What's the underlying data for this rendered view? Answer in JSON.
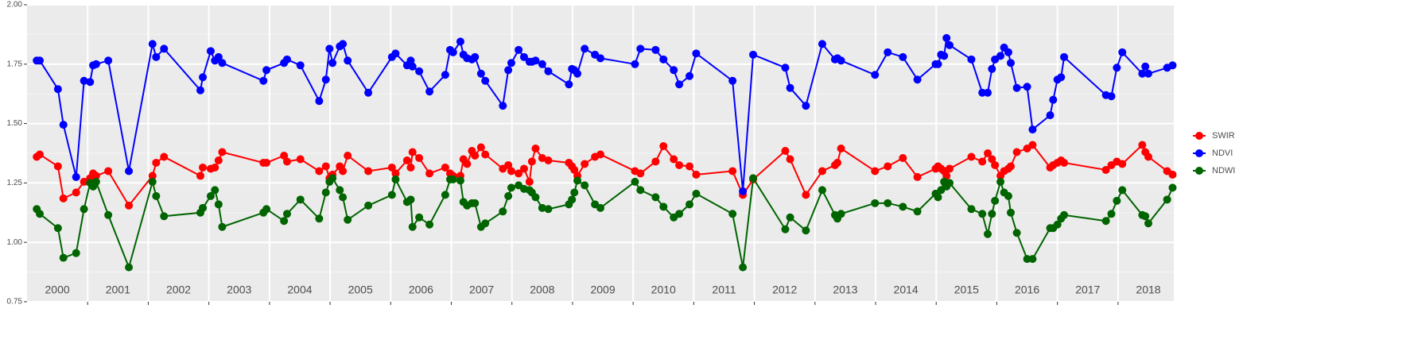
{
  "chart_data": {
    "type": "line",
    "x": [
      2000.16,
      2000.21,
      2000.51,
      2000.6,
      2000.81,
      2000.94,
      2001.04,
      2001.09,
      2001.14,
      2001.34,
      2001.68,
      2002.07,
      2002.13,
      2002.26,
      2002.86,
      2002.9,
      2003.03,
      2003.1,
      2003.16,
      2003.22,
      2003.9,
      2003.95,
      2004.24,
      2004.29,
      2004.51,
      2004.82,
      2004.93,
      2004.99,
      2005.04,
      2005.16,
      2005.21,
      2005.29,
      2005.63,
      2006.02,
      2006.08,
      2006.27,
      2006.33,
      2006.36,
      2006.47,
      2006.64,
      2006.9,
      2006.98,
      2007.03,
      2007.15,
      2007.2,
      2007.26,
      2007.34,
      2007.39,
      2007.49,
      2007.56,
      2007.85,
      2007.94,
      2007.99,
      2008.11,
      2008.2,
      2008.29,
      2008.33,
      2008.39,
      2008.5,
      2008.6,
      2008.94,
      2008.99,
      2009.03,
      2009.08,
      2009.2,
      2009.37,
      2009.46,
      2010.03,
      2010.12,
      2010.37,
      2010.5,
      2010.67,
      2010.76,
      2010.93,
      2011.04,
      2011.64,
      2011.81,
      2011.98,
      2012.51,
      2012.59,
      2012.85,
      2013.12,
      2013.33,
      2013.37,
      2013.43,
      2013.99,
      2014.2,
      2014.45,
      2014.69,
      2014.99,
      2015.03,
      2015.08,
      2015.13,
      2015.17,
      2015.22,
      2015.58,
      2015.76,
      2015.85,
      2015.92,
      2015.97,
      2016.06,
      2016.12,
      2016.19,
      2016.23,
      2016.33,
      2016.5,
      2016.59,
      2016.88,
      2016.93,
      2017.0,
      2017.06,
      2017.11,
      2017.8,
      2017.89,
      2017.98,
      2018.07,
      2018.4,
      2018.45,
      2018.5,
      2018.81,
      2018.9
    ],
    "series": [
      {
        "name": "SWIR",
        "color": "#ff0000",
        "values": [
          1.36,
          1.37,
          1.32,
          1.185,
          1.21,
          1.255,
          1.27,
          1.29,
          1.28,
          1.3,
          1.155,
          1.28,
          1.335,
          1.36,
          1.28,
          1.315,
          1.31,
          1.315,
          1.345,
          1.38,
          1.335,
          1.335,
          1.365,
          1.34,
          1.35,
          1.3,
          1.32,
          1.27,
          1.285,
          1.32,
          1.3,
          1.365,
          1.3,
          1.315,
          1.29,
          1.345,
          1.315,
          1.38,
          1.355,
          1.29,
          1.315,
          1.29,
          1.28,
          1.28,
          1.35,
          1.33,
          1.385,
          1.365,
          1.4,
          1.37,
          1.31,
          1.325,
          1.3,
          1.29,
          1.31,
          1.255,
          1.34,
          1.395,
          1.355,
          1.345,
          1.335,
          1.32,
          1.305,
          1.28,
          1.33,
          1.36,
          1.37,
          1.3,
          1.29,
          1.34,
          1.405,
          1.35,
          1.325,
          1.32,
          1.285,
          1.3,
          1.2,
          1.265,
          1.385,
          1.35,
          1.2,
          1.3,
          1.325,
          1.335,
          1.395,
          1.3,
          1.32,
          1.355,
          1.275,
          1.31,
          1.32,
          1.31,
          1.3,
          1.28,
          1.31,
          1.36,
          1.34,
          1.375,
          1.35,
          1.325,
          1.28,
          1.3,
          1.31,
          1.32,
          1.38,
          1.395,
          1.41,
          1.315,
          1.325,
          1.335,
          1.345,
          1.335,
          1.305,
          1.325,
          1.34,
          1.33,
          1.41,
          1.38,
          1.36,
          1.3,
          1.285
        ]
      },
      {
        "name": "NDVI",
        "color": "#0000ff",
        "values": [
          1.765,
          1.765,
          1.645,
          1.495,
          1.275,
          1.68,
          1.675,
          1.745,
          1.75,
          1.765,
          1.3,
          1.835,
          1.78,
          1.815,
          1.64,
          1.695,
          1.805,
          1.765,
          1.78,
          1.755,
          1.68,
          1.725,
          1.755,
          1.77,
          1.745,
          1.595,
          1.685,
          1.815,
          1.755,
          1.825,
          1.835,
          1.765,
          1.63,
          1.78,
          1.795,
          1.745,
          1.765,
          1.74,
          1.72,
          1.635,
          1.705,
          1.81,
          1.8,
          1.845,
          1.79,
          1.775,
          1.77,
          1.78,
          1.71,
          1.68,
          1.575,
          1.725,
          1.755,
          1.81,
          1.78,
          1.76,
          1.76,
          1.765,
          1.75,
          1.72,
          1.665,
          1.73,
          1.725,
          1.71,
          1.815,
          1.79,
          1.775,
          1.75,
          1.815,
          1.81,
          1.77,
          1.725,
          1.665,
          1.7,
          1.795,
          1.68,
          1.215,
          1.79,
          1.735,
          1.65,
          1.575,
          1.835,
          1.77,
          1.775,
          1.765,
          1.705,
          1.8,
          1.78,
          1.685,
          1.75,
          1.75,
          1.79,
          1.785,
          1.86,
          1.83,
          1.77,
          1.63,
          1.63,
          1.73,
          1.77,
          1.785,
          1.82,
          1.8,
          1.755,
          1.65,
          1.655,
          1.475,
          1.535,
          1.6,
          1.685,
          1.695,
          1.78,
          1.62,
          1.615,
          1.735,
          1.8,
          1.71,
          1.74,
          1.71,
          1.735,
          1.745
        ]
      },
      {
        "name": "NDWI",
        "color": "#006400",
        "values": [
          1.14,
          1.12,
          1.06,
          0.935,
          0.955,
          1.14,
          1.25,
          1.235,
          1.255,
          1.115,
          0.895,
          1.255,
          1.195,
          1.11,
          1.125,
          1.145,
          1.195,
          1.22,
          1.16,
          1.065,
          1.125,
          1.14,
          1.09,
          1.12,
          1.18,
          1.1,
          1.21,
          1.255,
          1.27,
          1.22,
          1.19,
          1.095,
          1.155,
          1.2,
          1.265,
          1.17,
          1.18,
          1.065,
          1.105,
          1.075,
          1.2,
          1.265,
          1.265,
          1.26,
          1.17,
          1.155,
          1.165,
          1.165,
          1.065,
          1.08,
          1.13,
          1.195,
          1.23,
          1.24,
          1.225,
          1.22,
          1.21,
          1.19,
          1.145,
          1.14,
          1.16,
          1.18,
          1.21,
          1.26,
          1.24,
          1.16,
          1.145,
          1.255,
          1.22,
          1.19,
          1.15,
          1.105,
          1.12,
          1.16,
          1.205,
          1.12,
          0.895,
          1.27,
          1.055,
          1.105,
          1.05,
          1.22,
          1.115,
          1.1,
          1.12,
          1.165,
          1.165,
          1.15,
          1.13,
          1.205,
          1.19,
          1.22,
          1.255,
          1.235,
          1.25,
          1.14,
          1.12,
          1.035,
          1.12,
          1.175,
          1.255,
          1.21,
          1.195,
          1.125,
          1.04,
          0.93,
          0.93,
          1.06,
          1.06,
          1.075,
          1.1,
          1.115,
          1.09,
          1.12,
          1.175,
          1.22,
          1.115,
          1.11,
          1.08,
          1.18,
          1.23
        ]
      }
    ],
    "xlim": [
      2000,
      2018.92
    ],
    "xticks": [
      {
        "value": 2000.5,
        "label": "2000"
      },
      {
        "value": 2001.5,
        "label": "2001"
      },
      {
        "value": 2002.5,
        "label": "2002"
      },
      {
        "value": 2003.5,
        "label": "2003"
      },
      {
        "value": 2004.5,
        "label": "2004"
      },
      {
        "value": 2005.5,
        "label": "2005"
      },
      {
        "value": 2006.5,
        "label": "2006"
      },
      {
        "value": 2007.5,
        "label": "2007"
      },
      {
        "value": 2008.5,
        "label": "2008"
      },
      {
        "value": 2009.5,
        "label": "2009"
      },
      {
        "value": 2010.5,
        "label": "2010"
      },
      {
        "value": 2011.5,
        "label": "2011"
      },
      {
        "value": 2012.5,
        "label": "2012"
      },
      {
        "value": 2013.5,
        "label": "2013"
      },
      {
        "value": 2014.5,
        "label": "2014"
      },
      {
        "value": 2015.5,
        "label": "2015"
      },
      {
        "value": 2016.5,
        "label": "2016"
      },
      {
        "value": 2017.5,
        "label": "2017"
      },
      {
        "value": 2018.5,
        "label": "2018"
      }
    ],
    "xgrid": [
      2001,
      2002,
      2003,
      2004,
      2005,
      2006,
      2007,
      2008,
      2009,
      2010,
      2011,
      2012,
      2013,
      2014,
      2015,
      2016,
      2017,
      2018
    ],
    "ylim": [
      0.75,
      2.0
    ],
    "yticks": [
      0.75,
      {
        "value": 1,
        "label": "1.00"
      },
      1.25,
      {
        "value": 1.5,
        "label": "1.50"
      },
      1.75,
      {
        "value": 2,
        "label": "2.00"
      }
    ],
    "yminor": [
      0.875,
      1.125,
      1.375,
      1.625,
      1.875
    ],
    "grid": true,
    "legend": "right"
  }
}
